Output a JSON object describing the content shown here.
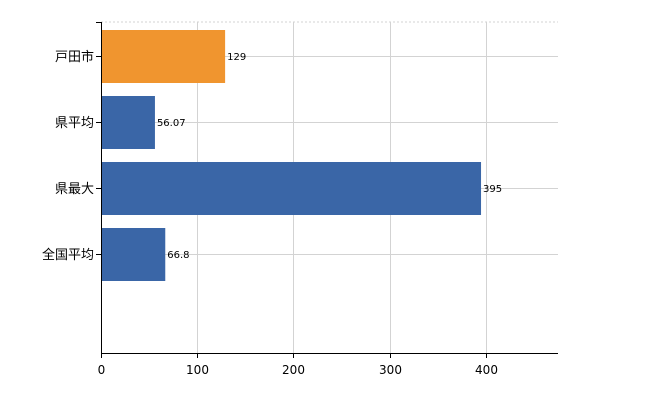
{
  "chart_data": {
    "type": "bar",
    "orientation": "horizontal",
    "categories": [
      "戸田市",
      "県平均",
      "県最大",
      "全国平均"
    ],
    "values": [
      129,
      56.07,
      395,
      66.8
    ],
    "value_labels": [
      "129",
      "56.07",
      "395",
      "66.8"
    ],
    "bar_colors": [
      "#f0952f",
      "#3a66a7",
      "#3a66a7",
      "#3a66a7"
    ],
    "xlim": [
      0,
      475
    ],
    "xticks": [
      0,
      100,
      200,
      300,
      400
    ],
    "xtick_labels": [
      "0",
      "100",
      "200",
      "300",
      "400"
    ],
    "title": "",
    "xlabel": "",
    "ylabel": "",
    "grid": true,
    "legend": "none"
  }
}
